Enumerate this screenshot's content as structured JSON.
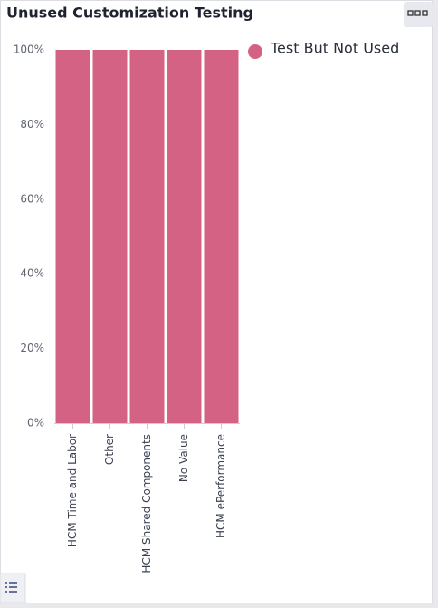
{
  "chart_data": {
    "type": "bar",
    "stacked": true,
    "title": "Unused Customization Testing",
    "categories": [
      "HCM Time and Labor",
      "Other",
      "HCM Shared Components",
      "No Value",
      "HCM ePerformance"
    ],
    "series": [
      {
        "name": "Test But Not Used",
        "color": "#d46285",
        "values": [
          100,
          100,
          100,
          100,
          100
        ]
      }
    ],
    "ylim": [
      0,
      100
    ],
    "yticks": [
      {
        "value": 0,
        "label": "0%"
      },
      {
        "value": 20,
        "label": "20%"
      },
      {
        "value": 40,
        "label": "40%"
      },
      {
        "value": 60,
        "label": "60%"
      },
      {
        "value": 80,
        "label": "80%"
      },
      {
        "value": 100,
        "label": "100%"
      }
    ],
    "grid": false,
    "legend": "right"
  }
}
